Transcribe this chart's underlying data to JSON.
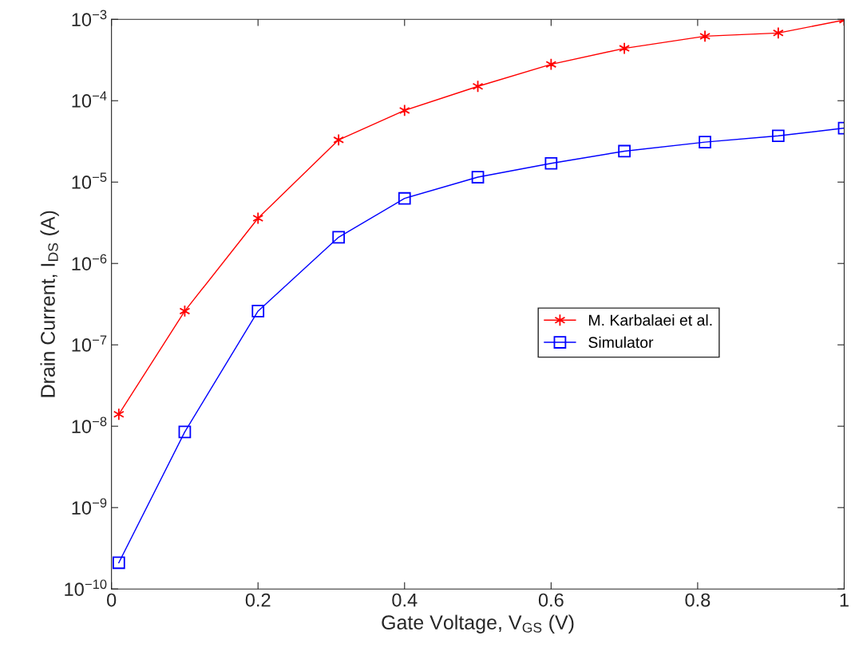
{
  "chart_data": {
    "type": "line",
    "xlabel": "Gate Voltage, V$_{GS}$ (V)",
    "ylabel": "Drain Current, I$_{DS}$ (A)",
    "x": [
      0.01,
      0.1,
      0.2,
      0.31,
      0.4,
      0.5,
      0.6,
      0.7,
      0.81,
      0.91,
      1.0
    ],
    "series": [
      {
        "name": "M. Karbalaei et al.",
        "color": "#ff0000",
        "marker": "cross",
        "values": [
          1.4e-08,
          2.6e-07,
          3.6e-06,
          3.3e-05,
          7.6e-05,
          0.00015,
          0.00028,
          0.00044,
          0.00062,
          0.00068,
          0.00098
        ]
      },
      {
        "name": "Simulator",
        "color": "#0000ff",
        "marker": "square",
        "values": [
          2.1e-10,
          8.5e-09,
          2.6e-07,
          2.1e-06,
          6.3e-06,
          1.15e-05,
          1.7e-05,
          2.4e-05,
          3.1e-05,
          3.7e-05,
          4.6e-05
        ]
      }
    ],
    "log": "y",
    "xlim": [
      0,
      1
    ],
    "xticks": [
      0,
      0.2,
      0.4,
      0.6,
      0.8,
      1
    ],
    "ylim": [
      1e-10,
      0.001
    ],
    "yticks": [
      {
        "value": 1e-10,
        "label": "10$^{−10}$"
      },
      {
        "value": 1e-09,
        "label": "10$^{−9}$"
      },
      {
        "value": 1e-08,
        "label": "10$^{−8}$"
      },
      {
        "value": 1e-07,
        "label": "10$^{−7}$"
      },
      {
        "value": 1e-06,
        "label": "10$^{−6}$"
      },
      {
        "value": 1e-05,
        "label": "10$^{−5}$"
      },
      {
        "value": 0.0001,
        "label": "10$^{−4}$"
      },
      {
        "value": 0.001,
        "label": "10$^{−3}$"
      }
    ],
    "grid": false,
    "legend": "right",
    "line_style": "solid"
  }
}
